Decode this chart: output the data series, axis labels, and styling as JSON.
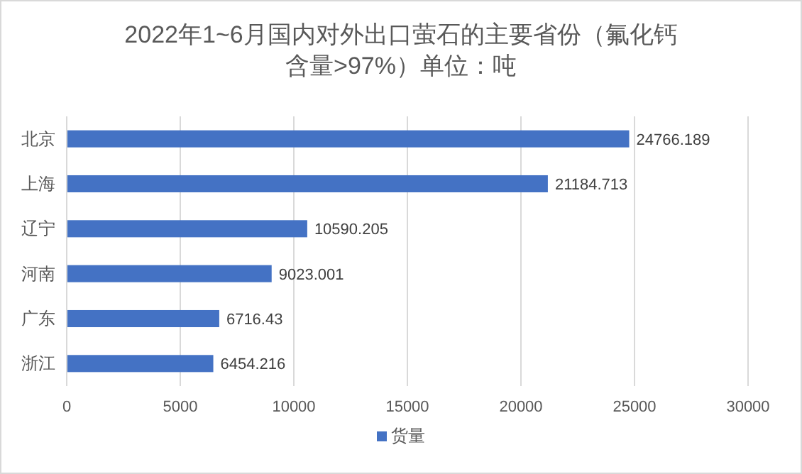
{
  "chart_data": {
    "type": "bar",
    "orientation": "horizontal",
    "title": "2022年1~6月国内对外出口萤石的主要省份（氟化钙含量>97%）单位：吨",
    "categories": [
      "北京",
      "上海",
      "辽宁",
      "河南",
      "广东",
      "浙江"
    ],
    "series": [
      {
        "name": "货量",
        "color": "#4472c4",
        "values": [
          24766.189,
          21184.713,
          10590.205,
          9023.001,
          6716.43,
          6454.216
        ]
      }
    ],
    "xlim": [
      0,
      30000
    ],
    "xticks": [
      0,
      5000,
      10000,
      15000,
      20000,
      25000,
      30000
    ],
    "grid": "x",
    "legend": "bottom",
    "data_labels": true
  }
}
